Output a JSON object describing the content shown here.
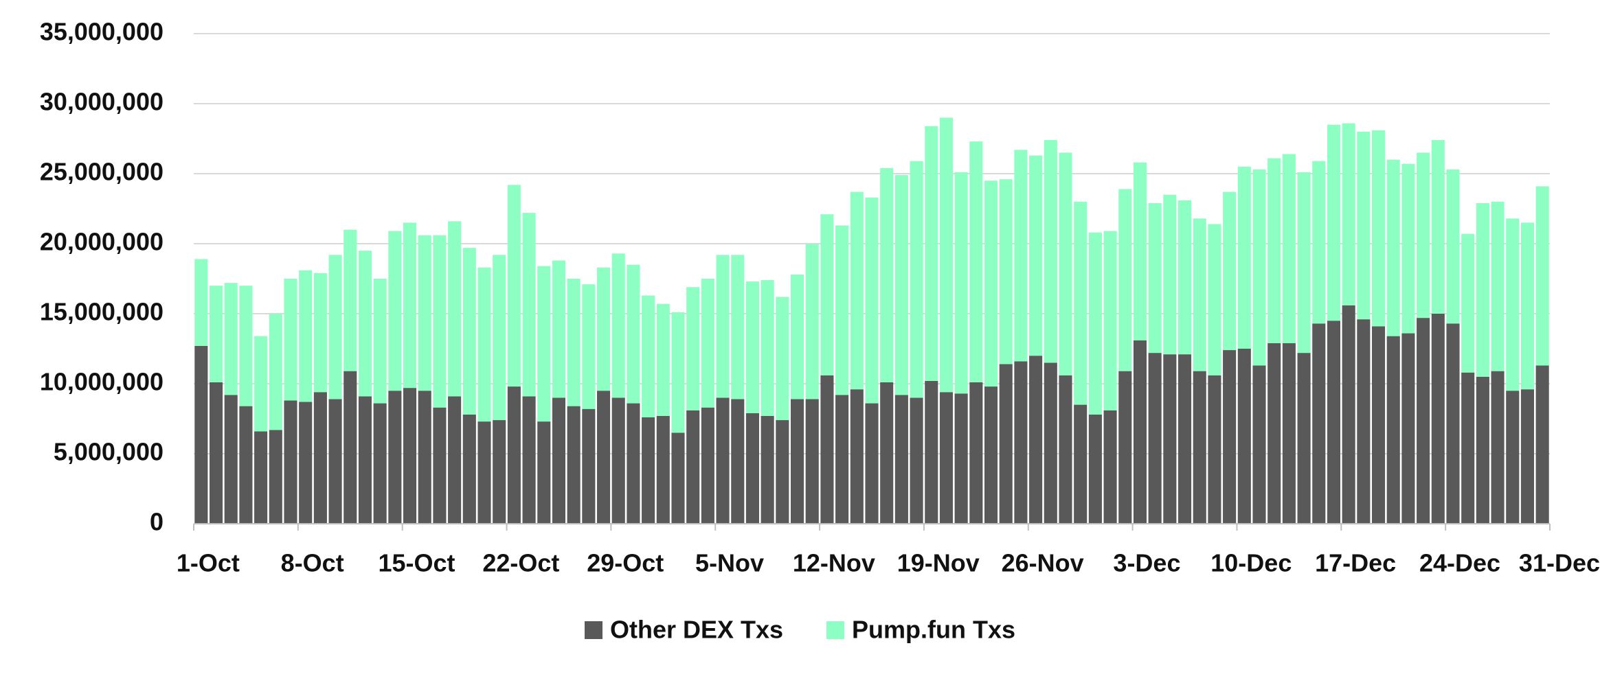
{
  "chart_data": {
    "type": "stacked_bar",
    "categories": [
      "1-Oct",
      null,
      null,
      null,
      null,
      null,
      null,
      "8-Oct",
      null,
      null,
      null,
      null,
      null,
      null,
      "15-Oct",
      null,
      null,
      null,
      null,
      null,
      null,
      "22-Oct",
      null,
      null,
      null,
      null,
      null,
      null,
      "29-Oct",
      null,
      null,
      null,
      null,
      null,
      null,
      "5-Nov",
      null,
      null,
      null,
      null,
      null,
      null,
      "12-Nov",
      null,
      null,
      null,
      null,
      null,
      null,
      "19-Nov",
      null,
      null,
      null,
      null,
      null,
      null,
      "26-Nov",
      null,
      null,
      null,
      null,
      null,
      null,
      "3-Dec",
      null,
      null,
      null,
      null,
      null,
      null,
      "10-Dec",
      null,
      null,
      null,
      null,
      null,
      null,
      "17-Dec",
      null,
      null,
      null,
      null,
      null,
      null,
      "24-Dec",
      null,
      null,
      null,
      null,
      null,
      null
    ],
    "x_end_label": "31-Dec",
    "series": [
      {
        "name": "Other DEX Txs",
        "color": "#595959",
        "values": [
          12700000,
          10100000,
          9200000,
          8400000,
          6600000,
          6700000,
          8800000,
          8700000,
          9400000,
          8900000,
          10900000,
          9100000,
          8600000,
          9500000,
          9700000,
          9500000,
          8300000,
          9100000,
          7800000,
          7300000,
          7400000,
          9800000,
          9100000,
          7300000,
          9000000,
          8400000,
          8200000,
          9500000,
          9000000,
          8600000,
          7600000,
          7700000,
          6500000,
          8100000,
          8300000,
          9000000,
          8900000,
          7900000,
          7700000,
          7400000,
          8900000,
          8900000,
          10600000,
          9200000,
          9600000,
          8600000,
          10100000,
          9200000,
          9000000,
          10200000,
          9400000,
          9300000,
          10100000,
          9800000,
          11400000,
          11600000,
          12000000,
          11500000,
          10600000,
          8500000,
          7800000,
          8100000,
          10900000,
          13100000,
          12200000,
          12100000,
          12100000,
          10900000,
          10600000,
          12400000,
          12500000,
          11300000,
          12900000,
          12900000,
          12200000,
          14300000,
          14500000,
          15600000,
          14600000,
          14100000,
          13400000,
          13600000,
          14700000,
          15000000,
          14300000,
          10800000,
          10500000,
          10900000,
          9500000,
          9600000,
          11300000
        ]
      },
      {
        "name": "Pump.fun Txs",
        "color": "#8effc2",
        "values": [
          6200000,
          6900000,
          8000000,
          8600000,
          6800000,
          8300000,
          8700000,
          9400000,
          8500000,
          10300000,
          10100000,
          10400000,
          8900000,
          11400000,
          11800000,
          11100000,
          12300000,
          12500000,
          11900000,
          11000000,
          11800000,
          14400000,
          13100000,
          11100000,
          9800000,
          9100000,
          8900000,
          8800000,
          10300000,
          9900000,
          8700000,
          8000000,
          8600000,
          8800000,
          9200000,
          10200000,
          10300000,
          9400000,
          9700000,
          8800000,
          8900000,
          11100000,
          11500000,
          12100000,
          14100000,
          14700000,
          15300000,
          15700000,
          16900000,
          18200000,
          19600000,
          15800000,
          17200000,
          14700000,
          13200000,
          15100000,
          14300000,
          15900000,
          15900000,
          14500000,
          13000000,
          12800000,
          13000000,
          12700000,
          10700000,
          11400000,
          11000000,
          10900000,
          10800000,
          11300000,
          13000000,
          14000000,
          13200000,
          13500000,
          12900000,
          11600000,
          14000000,
          13000000,
          13400000,
          14000000,
          12600000,
          12100000,
          11800000,
          12400000,
          11000000,
          9900000,
          12400000,
          12100000,
          12300000,
          11900000,
          12800000
        ]
      }
    ],
    "ylim": [
      0,
      35000000
    ],
    "yticks": [
      0,
      {
        "value": 5000000,
        "label": "5,000,000"
      },
      {
        "value": 10000000,
        "label": "10,000,000"
      },
      {
        "value": 15000000,
        "label": "15,000,000"
      },
      {
        "value": 20000000,
        "label": "20,000,000"
      },
      {
        "value": 25000000,
        "label": "25,000,000"
      },
      {
        "value": 30000000,
        "label": "30,000,000"
      },
      {
        "value": 35000000,
        "label": "35,000,000"
      }
    ],
    "grid": true,
    "legend": "bottom"
  }
}
